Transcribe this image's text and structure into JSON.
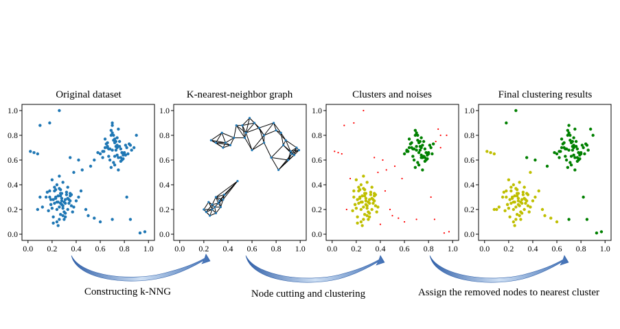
{
  "panels": [
    {
      "id": "original",
      "title": "Original dataset"
    },
    {
      "id": "knng",
      "title": "K-nearest-neighbor graph"
    },
    {
      "id": "clusters",
      "title": "Clusters and noises"
    },
    {
      "id": "final",
      "title": "Final clustering results"
    }
  ],
  "steps": [
    {
      "label": "Constructing k-NNG"
    },
    {
      "label": "Node cutting and clustering"
    },
    {
      "label": "Assign the removed nodes to nearest cluster"
    }
  ],
  "axis": {
    "x_ticks": [
      "0.0",
      "0.2",
      "0.4",
      "0.6",
      "0.8",
      "1.0"
    ],
    "y_ticks": [
      "0.0",
      "0.2",
      "0.4",
      "0.6",
      "0.8",
      "1.0"
    ],
    "xlim": [
      -0.05,
      1.05
    ],
    "ylim": [
      -0.05,
      1.05
    ]
  },
  "colors": {
    "original": "#1f77b4",
    "cluster_low": "#bfbf00",
    "cluster_high": "#008000",
    "noise": "#ff0000",
    "graph_edge": "#000000",
    "graph_node": "#1f77b4",
    "arrow": "#3f6fb5"
  },
  "chart_data": [
    {
      "type": "scatter",
      "title": "Original dataset",
      "series": [
        {
          "x": [
            0.21,
            0.26,
            0.18,
            0.31,
            0.28,
            0.24,
            0.35,
            0.22,
            0.3,
            0.27,
            0.19,
            0.33,
            0.25,
            0.29,
            0.23,
            0.36,
            0.2,
            0.32,
            0.26,
            0.28,
            0.15,
            0.38,
            0.24,
            0.31,
            0.27,
            0.22,
            0.34,
            0.29,
            0.17,
            0.25,
            0.3,
            0.21,
            0.35,
            0.26,
            0.33,
            0.19,
            0.28,
            0.24,
            0.4,
            0.12,
            0.32,
            0.23,
            0.27,
            0.36,
            0.18,
            0.29,
            0.25,
            0.31,
            0.22,
            0.34,
            0.08,
            0.42,
            0.27,
            0.2,
            0.3,
            0.24,
            0.37,
            0.16,
            0.28,
            0.33,
            0.26,
            0.21,
            0.35,
            0.29,
            0.23,
            0.31,
            0.19,
            0.27,
            0.44,
            0.1,
            0.7,
            0.75,
            0.66,
            0.78,
            0.72,
            0.68,
            0.81,
            0.74,
            0.64,
            0.77,
            0.71,
            0.69,
            0.83,
            0.73,
            0.67,
            0.76,
            0.62,
            0.79,
            0.7,
            0.74,
            0.65,
            0.8,
            0.72,
            0.68,
            0.85,
            0.75,
            0.6,
            0.77,
            0.71,
            0.73,
            0.69,
            0.82,
            0.66,
            0.78,
            0.74,
            0.63,
            0.79,
            0.7,
            0.76,
            0.72,
            0.58,
            0.84,
            0.67,
            0.75,
            0.71,
            0.8,
            0.64,
            0.77,
            0.73,
            0.69,
            0.86,
            0.62,
            0.74,
            0.78,
            0.7,
            0.66,
            0.81,
            0.72,
            0.55,
            0.88,
            0.26,
            0.18,
            0.02,
            0.08,
            0.05,
            0.97,
            0.42,
            0.5,
            0.55,
            0.6,
            0.38,
            0.45,
            0.85,
            0.93,
            0.35,
            0.48,
            0.7,
            0.52,
            0.1,
            0.82,
            0.9
          ],
          "y": [
            0.28,
            0.22,
            0.3,
            0.25,
            0.33,
            0.2,
            0.27,
            0.35,
            0.18,
            0.31,
            0.24,
            0.38,
            0.26,
            0.15,
            0.29,
            0.32,
            0.21,
            0.34,
            0.12,
            0.27,
            0.3,
            0.22,
            0.4,
            0.17,
            0.36,
            0.25,
            0.28,
            0.23,
            0.19,
            0.31,
            0.26,
            0.14,
            0.33,
            0.37,
            0.2,
            0.24,
            0.29,
            0.1,
            0.27,
            0.22,
            0.32,
            0.3,
            0.16,
            0.23,
            0.35,
            0.42,
            0.07,
            0.28,
            0.38,
            0.25,
            0.2,
            0.3,
            0.33,
            0.44,
            0.12,
            0.26,
            0.18,
            0.34,
            0.24,
            0.29,
            0.47,
            0.09,
            0.31,
            0.21,
            0.36,
            0.14,
            0.28,
            0.25,
            0.35,
            0.3,
            0.68,
            0.62,
            0.7,
            0.66,
            0.74,
            0.6,
            0.72,
            0.64,
            0.77,
            0.69,
            0.58,
            0.8,
            0.65,
            0.71,
            0.63,
            0.75,
            0.67,
            0.61,
            0.82,
            0.7,
            0.73,
            0.66,
            0.56,
            0.69,
            0.72,
            0.85,
            0.65,
            0.62,
            0.76,
            0.68,
            0.54,
            0.7,
            0.74,
            0.6,
            0.78,
            0.67,
            0.64,
            0.88,
            0.71,
            0.63,
            0.66,
            0.73,
            0.69,
            0.52,
            0.8,
            0.65,
            0.7,
            0.59,
            0.75,
            0.84,
            0.68,
            0.62,
            0.72,
            0.66,
            0.9,
            0.71,
            0.64,
            0.77,
            0.6,
            0.7,
            1.0,
            0.9,
            0.67,
            0.65,
            0.66,
            0.02,
            0.6,
            0.15,
            0.13,
            0.1,
            0.5,
            0.52,
            0.12,
            0.01,
            0.62,
            0.2,
            0.12,
            0.55,
            0.88,
            0.3,
            0.8
          ]
        }
      ],
      "xlim": [
        -0.05,
        1.05
      ],
      "ylim": [
        -0.05,
        1.05
      ]
    },
    {
      "type": "scatter",
      "title": "K-nearest-neighbor graph",
      "series": [
        {
          "x": [
            0.22,
            0.25,
            0.27,
            0.29,
            0.32,
            0.36,
            0.27,
            0.24,
            0.3,
            0.2,
            0.34,
            0.48,
            0.37,
            0.3,
            0.33,
            0.38,
            0.52,
            0.55,
            0.58,
            0.62,
            0.66,
            0.7,
            0.78,
            0.8,
            0.84,
            0.88,
            0.92,
            0.95,
            0.97,
            0.99,
            0.9,
            0.82,
            0.76,
            0.6,
            0.54,
            0.47,
            0.42,
            0.36,
            0.3,
            0.26,
            0.35,
            0.45,
            0.7,
            0.86,
            0.93
          ],
          "y": [
            0.18,
            0.15,
            0.2,
            0.22,
            0.25,
            0.28,
            0.24,
            0.26,
            0.17,
            0.2,
            0.22,
            0.43,
            0.32,
            0.3,
            0.27,
            0.74,
            0.88,
            0.82,
            0.94,
            0.9,
            0.86,
            0.8,
            0.9,
            0.84,
            0.82,
            0.76,
            0.67,
            0.64,
            0.7,
            0.68,
            0.6,
            0.52,
            0.62,
            0.68,
            0.78,
            0.88,
            0.72,
            0.7,
            0.74,
            0.76,
            0.82,
            0.78,
            0.74,
            0.72,
            0.65
          ]
        }
      ],
      "xlim": [
        -0.05,
        1.05
      ],
      "ylim": [
        -0.05,
        1.05
      ]
    },
    {
      "type": "scatter",
      "title": "Clusters and noises",
      "series": [
        {
          "x": [
            0.21,
            0.26,
            0.18,
            0.31,
            0.28,
            0.24,
            0.35,
            0.22,
            0.3,
            0.27,
            0.19,
            0.33,
            0.25,
            0.29,
            0.23,
            0.36,
            0.2,
            0.32,
            0.26,
            0.28,
            0.38,
            0.24,
            0.31,
            0.27,
            0.22,
            0.34,
            0.29,
            0.17,
            0.25,
            0.3,
            0.21,
            0.35,
            0.26,
            0.33,
            0.19,
            0.28,
            0.24,
            0.32,
            0.23,
            0.27,
            0.36,
            0.18,
            0.29,
            0.25,
            0.31,
            0.22,
            0.34,
            0.27,
            0.2,
            0.3,
            0.24,
            0.37,
            0.28,
            0.33,
            0.26,
            0.21,
            0.35,
            0.29,
            0.23,
            0.31
          ],
          "y": [
            0.28,
            0.22,
            0.3,
            0.25,
            0.33,
            0.2,
            0.27,
            0.35,
            0.18,
            0.31,
            0.24,
            0.38,
            0.26,
            0.15,
            0.29,
            0.32,
            0.21,
            0.34,
            0.12,
            0.27,
            0.22,
            0.4,
            0.17,
            0.36,
            0.25,
            0.28,
            0.23,
            0.19,
            0.31,
            0.26,
            0.14,
            0.33,
            0.37,
            0.2,
            0.24,
            0.29,
            0.1,
            0.32,
            0.3,
            0.16,
            0.23,
            0.35,
            0.42,
            0.07,
            0.28,
            0.38,
            0.25,
            0.33,
            0.44,
            0.12,
            0.26,
            0.18,
            0.24,
            0.29,
            0.47,
            0.09,
            0.31,
            0.21,
            0.36,
            0.14
          ]
        },
        {
          "x": [
            0.7,
            0.75,
            0.66,
            0.78,
            0.72,
            0.68,
            0.81,
            0.74,
            0.64,
            0.77,
            0.71,
            0.69,
            0.83,
            0.73,
            0.67,
            0.76,
            0.62,
            0.79,
            0.7,
            0.74,
            0.65,
            0.8,
            0.72,
            0.68,
            0.75,
            0.6,
            0.77,
            0.71,
            0.73,
            0.69,
            0.82,
            0.66,
            0.78,
            0.74,
            0.63,
            0.79,
            0.7,
            0.76,
            0.72,
            0.84,
            0.67,
            0.75,
            0.71,
            0.8,
            0.64,
            0.77,
            0.73,
            0.69,
            0.62,
            0.74
          ],
          "y": [
            0.68,
            0.62,
            0.7,
            0.66,
            0.74,
            0.6,
            0.72,
            0.64,
            0.77,
            0.69,
            0.58,
            0.8,
            0.65,
            0.71,
            0.63,
            0.75,
            0.67,
            0.61,
            0.82,
            0.7,
            0.73,
            0.66,
            0.56,
            0.69,
            0.72,
            0.65,
            0.62,
            0.76,
            0.68,
            0.54,
            0.7,
            0.74,
            0.6,
            0.78,
            0.67,
            0.64,
            0.71,
            0.63,
            0.66,
            0.73,
            0.69,
            0.52,
            0.8,
            0.65,
            0.7,
            0.59,
            0.75,
            0.84,
            0.68,
            0.62
          ]
        },
        {
          "x": [
            0.26,
            0.18,
            0.02,
            0.08,
            0.05,
            0.97,
            0.42,
            0.5,
            0.55,
            0.6,
            0.38,
            0.45,
            0.85,
            0.93,
            0.35,
            0.48,
            0.7,
            0.52,
            0.1,
            0.82,
            0.9,
            0.15,
            0.4,
            0.12,
            0.44,
            0.58,
            0.88,
            0.86,
            0.9,
            0.95
          ],
          "y": [
            1.0,
            0.9,
            0.67,
            0.65,
            0.66,
            0.02,
            0.6,
            0.15,
            0.13,
            0.1,
            0.5,
            0.52,
            0.12,
            0.01,
            0.62,
            0.2,
            0.12,
            0.55,
            0.88,
            0.3,
            0.8,
            0.45,
            0.08,
            0.2,
            0.35,
            0.45,
            0.85,
            0.75,
            0.7,
            0.8
          ]
        }
      ],
      "xlim": [
        -0.05,
        1.05
      ],
      "ylim": [
        -0.05,
        1.05
      ]
    },
    {
      "type": "scatter",
      "title": "Final clustering results",
      "series": [
        {
          "x": [
            0.21,
            0.26,
            0.18,
            0.31,
            0.28,
            0.24,
            0.35,
            0.22,
            0.3,
            0.27,
            0.19,
            0.33,
            0.25,
            0.29,
            0.23,
            0.36,
            0.2,
            0.32,
            0.26,
            0.28,
            0.15,
            0.38,
            0.24,
            0.31,
            0.27,
            0.22,
            0.34,
            0.29,
            0.17,
            0.25,
            0.3,
            0.21,
            0.35,
            0.26,
            0.33,
            0.19,
            0.28,
            0.24,
            0.4,
            0.12,
            0.32,
            0.23,
            0.27,
            0.36,
            0.18,
            0.29,
            0.25,
            0.31,
            0.22,
            0.34,
            0.08,
            0.42,
            0.27,
            0.2,
            0.3,
            0.24,
            0.37,
            0.16,
            0.28,
            0.33,
            0.02,
            0.08,
            0.05,
            0.5,
            0.55,
            0.6,
            0.48,
            0.1,
            0.45,
            0.38
          ],
          "y": [
            0.28,
            0.22,
            0.3,
            0.25,
            0.33,
            0.2,
            0.27,
            0.35,
            0.18,
            0.31,
            0.24,
            0.38,
            0.26,
            0.15,
            0.29,
            0.32,
            0.21,
            0.34,
            0.12,
            0.27,
            0.3,
            0.22,
            0.4,
            0.17,
            0.36,
            0.25,
            0.28,
            0.23,
            0.19,
            0.31,
            0.26,
            0.14,
            0.33,
            0.37,
            0.2,
            0.24,
            0.29,
            0.1,
            0.27,
            0.22,
            0.32,
            0.3,
            0.16,
            0.23,
            0.35,
            0.42,
            0.07,
            0.28,
            0.38,
            0.25,
            0.2,
            0.3,
            0.33,
            0.44,
            0.12,
            0.26,
            0.18,
            0.34,
            0.24,
            0.29,
            0.67,
            0.65,
            0.66,
            0.15,
            0.13,
            0.1,
            0.2,
            0.2,
            0.35,
            0.5
          ]
        },
        {
          "x": [
            0.7,
            0.75,
            0.66,
            0.78,
            0.72,
            0.68,
            0.81,
            0.74,
            0.64,
            0.77,
            0.71,
            0.69,
            0.83,
            0.73,
            0.67,
            0.76,
            0.62,
            0.79,
            0.7,
            0.74,
            0.65,
            0.8,
            0.72,
            0.68,
            0.85,
            0.75,
            0.6,
            0.77,
            0.71,
            0.73,
            0.69,
            0.82,
            0.66,
            0.78,
            0.74,
            0.63,
            0.79,
            0.7,
            0.76,
            0.72,
            0.58,
            0.84,
            0.67,
            0.75,
            0.71,
            0.8,
            0.64,
            0.77,
            0.73,
            0.69,
            0.86,
            0.62,
            0.74,
            0.78,
            0.26,
            0.18,
            0.97,
            0.85,
            0.93,
            0.42,
            0.35,
            0.52,
            0.7,
            0.82,
            0.9,
            0.88
          ],
          "y": [
            0.68,
            0.62,
            0.7,
            0.66,
            0.74,
            0.6,
            0.72,
            0.64,
            0.77,
            0.69,
            0.58,
            0.8,
            0.65,
            0.71,
            0.63,
            0.75,
            0.67,
            0.61,
            0.82,
            0.7,
            0.73,
            0.66,
            0.56,
            0.69,
            0.72,
            0.85,
            0.65,
            0.62,
            0.76,
            0.68,
            0.54,
            0.7,
            0.74,
            0.6,
            0.78,
            0.67,
            0.64,
            0.88,
            0.71,
            0.63,
            0.66,
            0.73,
            0.69,
            0.52,
            0.8,
            0.65,
            0.7,
            0.59,
            0.75,
            0.84,
            0.68,
            0.62,
            0.72,
            0.66,
            1.0,
            0.9,
            0.02,
            0.12,
            0.01,
            0.6,
            0.62,
            0.55,
            0.12,
            0.3,
            0.8,
            0.85
          ]
        }
      ],
      "xlim": [
        -0.05,
        1.05
      ],
      "ylim": [
        -0.05,
        1.05
      ]
    }
  ]
}
